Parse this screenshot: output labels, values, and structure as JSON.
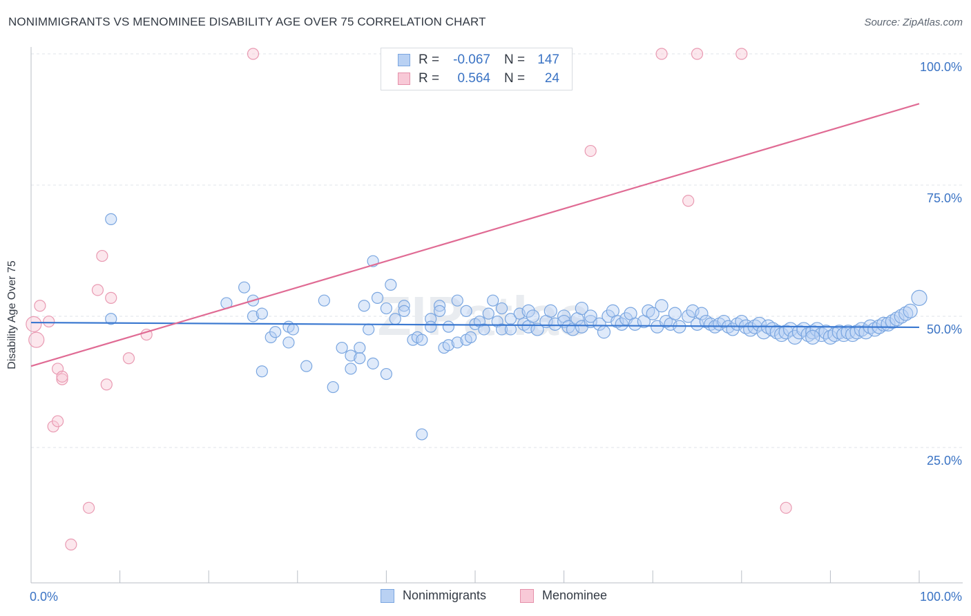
{
  "title": "NONIMMIGRANTS VS MENOMINEE DISABILITY AGE OVER 75 CORRELATION CHART",
  "source": "Source: ZipAtlas.com",
  "watermark": "ZIPatlas",
  "legend_stats": [
    {
      "r_label": "R =",
      "r_value": "-0.067",
      "n_label": "N =",
      "n_value": "147",
      "color": "#7aa6e0",
      "fill": "#b9d1f3"
    },
    {
      "r_label": "R =",
      "r_value": "0.564",
      "n_label": "N =",
      "n_value": "24",
      "color": "#e590aa",
      "fill": "#f8c9d7"
    }
  ],
  "colors": {
    "blue_line": "#3a78d0",
    "pink_line": "#e06b94",
    "blue_point": "#7aa6e0",
    "pink_point": "#e99ab2",
    "tick_text": "#3a73c4"
  },
  "chart_data": {
    "type": "scatter",
    "title": "NONIMMIGRANTS VS MENOMINEE DISABILITY AGE OVER 75 CORRELATION CHART",
    "xlabel": "",
    "ylabel": "Disability Age Over 75",
    "xlim": [
      0,
      100
    ],
    "ylim": [
      0,
      100
    ],
    "x_tick_labels": [
      "0.0%",
      "100.0%"
    ],
    "y_tick_labels": [
      "25.0%",
      "50.0%",
      "75.0%",
      "100.0%"
    ],
    "y_ticks": [
      25,
      50,
      75,
      100
    ],
    "grid": true,
    "legend_position": "bottom-center",
    "series": [
      {
        "name": "Nonimmigrants",
        "color": "#7aa6e0",
        "trend": {
          "x": [
            0,
            100
          ],
          "y": [
            48.8,
            47.9
          ]
        },
        "points": [
          [
            9,
            68.5
          ],
          [
            9,
            49.5
          ],
          [
            22,
            52.5
          ],
          [
            24,
            55.5
          ],
          [
            25,
            53
          ],
          [
            25,
            50
          ],
          [
            26,
            50.5
          ],
          [
            27,
            46
          ],
          [
            27.5,
            47
          ],
          [
            26,
            39.5
          ],
          [
            29,
            48
          ],
          [
            29.5,
            47.5
          ],
          [
            29,
            45
          ],
          [
            31,
            40.5
          ],
          [
            33,
            53
          ],
          [
            34,
            36.5
          ],
          [
            35,
            44
          ],
          [
            36,
            42.5
          ],
          [
            36,
            40
          ],
          [
            37,
            44
          ],
          [
            37,
            42
          ],
          [
            37.5,
            52
          ],
          [
            38.5,
            41
          ],
          [
            38.5,
            60.5
          ],
          [
            38,
            47.5
          ],
          [
            39,
            53.5
          ],
          [
            40,
            39
          ],
          [
            40,
            51.5
          ],
          [
            40.5,
            56
          ],
          [
            41,
            49.5
          ],
          [
            42,
            52
          ],
          [
            42,
            51
          ],
          [
            43,
            45.5
          ],
          [
            43.5,
            46
          ],
          [
            44,
            45.5
          ],
          [
            44,
            27.5
          ],
          [
            45,
            49.5
          ],
          [
            45,
            48
          ],
          [
            46,
            52
          ],
          [
            46,
            51
          ],
          [
            46.5,
            44
          ],
          [
            47,
            44.5
          ],
          [
            47,
            48
          ],
          [
            48,
            45
          ],
          [
            48,
            53
          ],
          [
            49,
            51
          ],
          [
            49,
            45.5
          ],
          [
            49.5,
            46
          ],
          [
            50,
            48.5
          ],
          [
            50.5,
            49
          ],
          [
            51,
            47.5
          ],
          [
            51.5,
            50.5
          ],
          [
            52,
            53
          ],
          [
            52.5,
            49
          ],
          [
            53,
            47.5
          ],
          [
            53,
            51.5
          ],
          [
            54,
            49.5
          ],
          [
            54,
            47.5
          ],
          [
            55,
            50.5
          ],
          [
            55.5,
            48.5
          ],
          [
            56,
            51
          ],
          [
            56,
            48
          ],
          [
            56.5,
            50
          ],
          [
            57,
            47.5
          ],
          [
            58,
            49
          ],
          [
            58.5,
            51
          ],
          [
            59,
            48.5
          ],
          [
            60,
            50
          ],
          [
            60,
            49
          ],
          [
            60.5,
            48
          ],
          [
            61,
            47.5
          ],
          [
            61.5,
            49.5
          ],
          [
            62,
            48
          ],
          [
            62,
            51.5
          ],
          [
            63,
            49
          ],
          [
            63,
            50
          ],
          [
            64,
            48.5
          ],
          [
            64.5,
            47
          ],
          [
            65,
            50
          ],
          [
            65.5,
            51
          ],
          [
            66,
            49
          ],
          [
            66.5,
            48.5
          ],
          [
            67,
            49.5
          ],
          [
            67.5,
            50.5
          ],
          [
            68,
            48.5
          ],
          [
            69,
            49
          ],
          [
            69.5,
            51
          ],
          [
            70,
            50.5
          ],
          [
            70.5,
            48
          ],
          [
            71,
            52
          ],
          [
            71.5,
            49
          ],
          [
            72,
            48.5
          ],
          [
            72.5,
            50.5
          ],
          [
            73,
            48
          ],
          [
            74,
            50
          ],
          [
            74.5,
            51
          ],
          [
            75,
            48.5
          ],
          [
            75.5,
            50.5
          ],
          [
            76,
            49
          ],
          [
            76.5,
            48.5
          ],
          [
            77,
            48
          ],
          [
            77.5,
            48.5
          ],
          [
            78,
            49
          ],
          [
            78.5,
            48
          ],
          [
            79,
            47.5
          ],
          [
            79.5,
            48.5
          ],
          [
            80,
            49
          ],
          [
            80.5,
            48
          ],
          [
            81,
            47.5
          ],
          [
            81.5,
            48
          ],
          [
            82,
            48.5
          ],
          [
            82.5,
            47
          ],
          [
            83,
            48
          ],
          [
            83.5,
            47.5
          ],
          [
            84,
            47
          ],
          [
            84.5,
            46.5
          ],
          [
            85,
            47
          ],
          [
            85.5,
            47.5
          ],
          [
            86,
            46
          ],
          [
            86.5,
            47
          ],
          [
            87,
            47.5
          ],
          [
            87.5,
            46.5
          ],
          [
            88,
            47
          ],
          [
            88.5,
            47.5
          ],
          [
            89,
            46.5
          ],
          [
            89.5,
            47
          ],
          [
            90,
            46
          ],
          [
            90.5,
            46.5
          ],
          [
            91,
            47
          ],
          [
            91.5,
            46.5
          ],
          [
            92,
            47
          ],
          [
            92.5,
            46.5
          ],
          [
            93,
            47
          ],
          [
            93.5,
            47.5
          ],
          [
            94,
            47
          ],
          [
            94.5,
            48
          ],
          [
            95,
            47.5
          ],
          [
            95.5,
            48
          ],
          [
            96,
            48.5
          ],
          [
            96.5,
            48.5
          ],
          [
            97,
            49
          ],
          [
            97.5,
            49.5
          ],
          [
            98,
            50
          ],
          [
            98.5,
            50.5
          ],
          [
            99,
            51
          ],
          [
            100,
            53.5
          ],
          [
            88,
            46
          ]
        ]
      },
      {
        "name": "Menominee",
        "color": "#e99ab2",
        "trend": {
          "x": [
            0,
            100
          ],
          "y": [
            40.5,
            90.5
          ]
        },
        "points": [
          [
            0.3,
            48.5
          ],
          [
            0.6,
            45.5
          ],
          [
            1,
            52
          ],
          [
            2,
            49
          ],
          [
            2.5,
            29
          ],
          [
            3,
            30
          ],
          [
            3,
            40
          ],
          [
            3.5,
            38
          ],
          [
            3.5,
            38.5
          ],
          [
            4.5,
            6.5
          ],
          [
            6.5,
            13.5
          ],
          [
            7.5,
            55
          ],
          [
            8,
            61.5
          ],
          [
            8.5,
            37
          ],
          [
            9,
            53.5
          ],
          [
            11,
            42
          ],
          [
            13,
            46.5
          ],
          [
            25,
            100
          ],
          [
            63,
            81.5
          ],
          [
            71,
            100
          ],
          [
            74,
            72
          ],
          [
            75,
            100
          ],
          [
            80,
            100
          ],
          [
            85,
            13.5
          ]
        ]
      }
    ]
  }
}
